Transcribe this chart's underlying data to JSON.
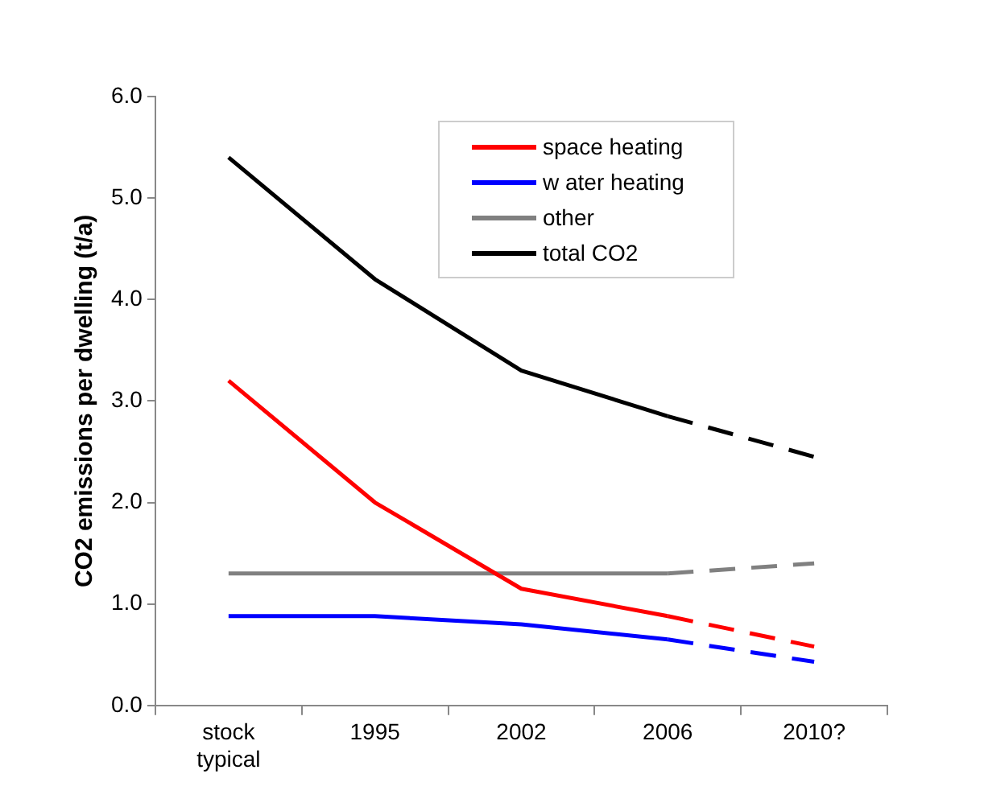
{
  "chart_data": {
    "type": "line",
    "ylabel": "CO2 emissions per dwelling (t/a)",
    "categories": [
      "stock typical",
      "1995",
      "2002",
      "2006",
      "2010?"
    ],
    "ylim": [
      0,
      6
    ],
    "yticks": [
      {
        "value": 0,
        "label": "0.0"
      },
      {
        "value": 1,
        "label": "1.0"
      },
      {
        "value": 2,
        "label": "2.0"
      },
      {
        "value": 3,
        "label": "3.0"
      },
      {
        "value": 4,
        "label": "4.0"
      },
      {
        "value": 5,
        "label": "5.0"
      },
      {
        "value": 6,
        "label": "6.0"
      }
    ],
    "grid": false,
    "legend": "top right",
    "marker": "none",
    "series": [
      {
        "name": "space heating",
        "color": "#ff0000",
        "line_style": "solid",
        "values": [
          3.2,
          2.0,
          1.15,
          0.88,
          null
        ]
      },
      {
        "name": "w ater heating",
        "color": "#0000ff",
        "line_style": "solid",
        "values": [
          0.88,
          0.88,
          0.8,
          0.65,
          null
        ]
      },
      {
        "name": "other",
        "color": "#808080",
        "line_style": "solid",
        "values": [
          1.3,
          1.3,
          1.3,
          1.3,
          null
        ]
      },
      {
        "name": "total CO2",
        "color": "#000000",
        "line_style": "solid",
        "values": [
          5.4,
          4.2,
          3.3,
          2.85,
          null
        ]
      },
      {
        "color": "#ff0000",
        "line_style": "dashed",
        "values": [
          null,
          null,
          null,
          0.88,
          0.58
        ]
      },
      {
        "color": "#0000ff",
        "line_style": "dashed",
        "values": [
          null,
          null,
          null,
          0.65,
          0.43
        ]
      },
      {
        "color": "#808080",
        "line_style": "dashed",
        "values": [
          null,
          null,
          null,
          1.3,
          1.4
        ]
      },
      {
        "color": "#000000",
        "line_style": "dashed",
        "values": [
          null,
          null,
          null,
          2.85,
          2.45
        ]
      }
    ]
  }
}
